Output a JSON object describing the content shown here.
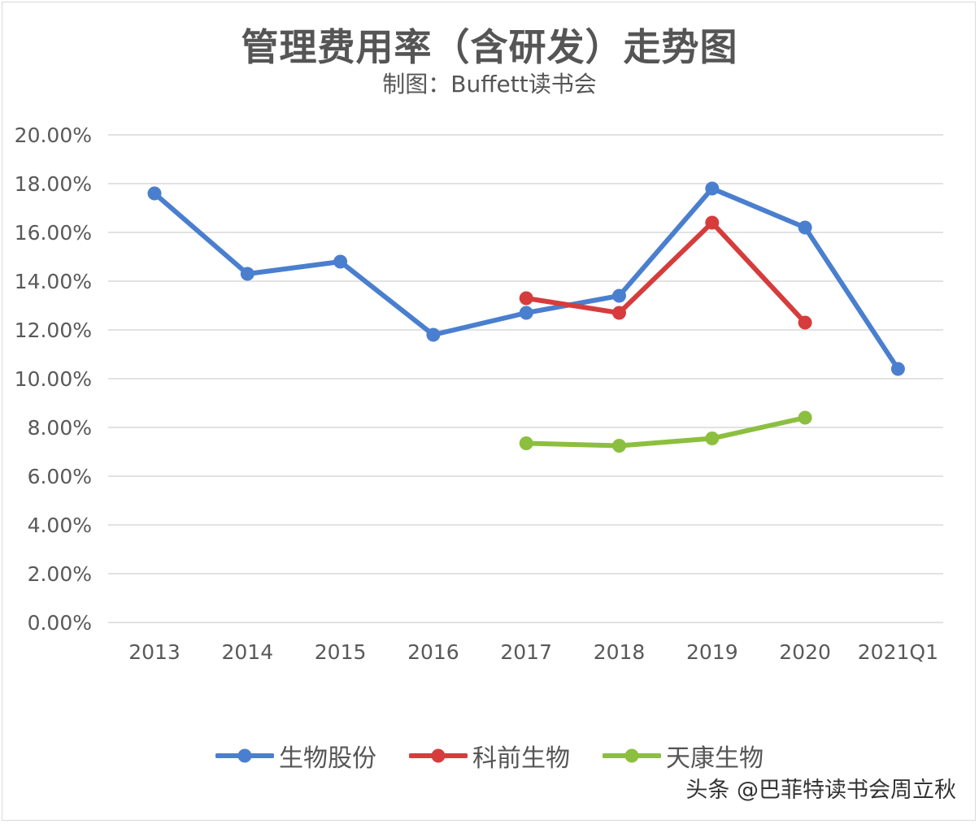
{
  "chart_data": {
    "type": "line",
    "title": "管理费用率（含研发）走势图",
    "subtitle": "制图：Buffett读书会",
    "categories": [
      "2013",
      "2014",
      "2015",
      "2016",
      "2017",
      "2018",
      "2019",
      "2020",
      "2021Q1"
    ],
    "y_ticks": [
      "0.00%",
      "2.00%",
      "4.00%",
      "6.00%",
      "8.00%",
      "10.00%",
      "12.00%",
      "14.00%",
      "16.00%",
      "18.00%",
      "20.00%"
    ],
    "ylim": [
      0,
      20
    ],
    "grid": true,
    "legend_position": "bottom",
    "series": [
      {
        "name": "生物股份",
        "color": "#4a7fcf",
        "values": [
          17.6,
          14.3,
          14.8,
          11.8,
          12.7,
          13.4,
          17.8,
          16.2,
          10.4
        ]
      },
      {
        "name": "科前生物",
        "color": "#d63c3c",
        "values": [
          null,
          null,
          null,
          null,
          13.3,
          12.7,
          16.4,
          12.3,
          null
        ]
      },
      {
        "name": "天康生物",
        "color": "#8cbf3f",
        "values": [
          null,
          null,
          null,
          null,
          7.35,
          7.25,
          7.55,
          8.4,
          null
        ]
      }
    ]
  },
  "watermark": "头条 @巴菲特读书会周立秋"
}
